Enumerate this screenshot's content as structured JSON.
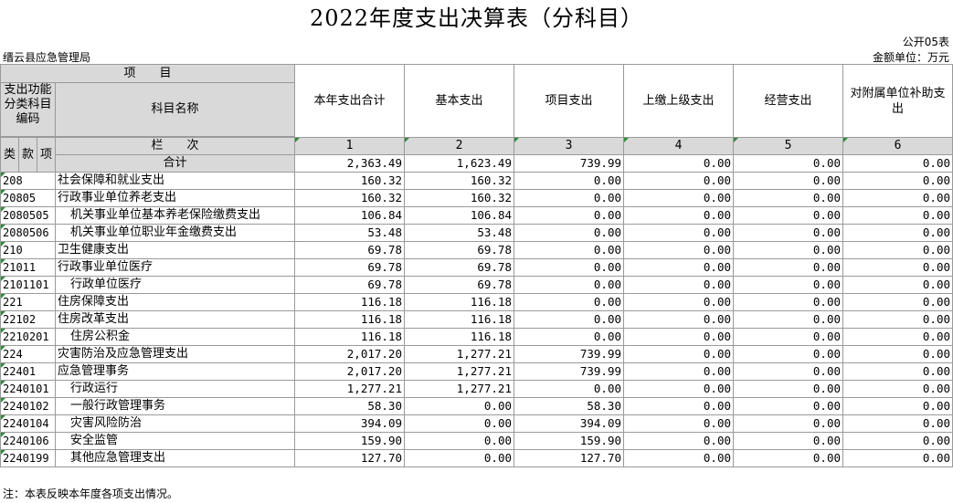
{
  "title": "2022年度支出决算表（分科目）",
  "form_code": "公开05表",
  "org_name": "缙云县应急管理局",
  "unit_label": "金额单位：万元",
  "header": {
    "item": "项　　目",
    "func_code": "支出功能分类科目编码",
    "name": "科目名称",
    "lei": "类",
    "kuan": "款",
    "xiang": "项",
    "lanci": "栏　　次",
    "columns": [
      "本年支出合计",
      "基本支出",
      "项目支出",
      "上缴上级支出",
      "经营支出",
      "对附属单位补助支出"
    ],
    "column_numbers": [
      "1",
      "2",
      "3",
      "4",
      "5",
      "6"
    ]
  },
  "total": {
    "label": "合计",
    "values": [
      "2,363.49",
      "1,623.49",
      "739.99",
      "0.00",
      "0.00",
      "0.00"
    ]
  },
  "rows": [
    {
      "code": "208",
      "name": "社会保障和就业支出",
      "values": [
        "160.32",
        "160.32",
        "0.00",
        "0.00",
        "0.00",
        "0.00"
      ]
    },
    {
      "code": "20805",
      "name": "行政事业单位养老支出",
      "values": [
        "160.32",
        "160.32",
        "0.00",
        "0.00",
        "0.00",
        "0.00"
      ]
    },
    {
      "code": "2080505",
      "name": "机关事业单位基本养老保险缴费支出",
      "values": [
        "106.84",
        "106.84",
        "0.00",
        "0.00",
        "0.00",
        "0.00"
      ]
    },
    {
      "code": "2080506",
      "name": "机关事业单位职业年金缴费支出",
      "values": [
        "53.48",
        "53.48",
        "0.00",
        "0.00",
        "0.00",
        "0.00"
      ]
    },
    {
      "code": "210",
      "name": "卫生健康支出",
      "values": [
        "69.78",
        "69.78",
        "0.00",
        "0.00",
        "0.00",
        "0.00"
      ]
    },
    {
      "code": "21011",
      "name": "行政事业单位医疗",
      "values": [
        "69.78",
        "69.78",
        "0.00",
        "0.00",
        "0.00",
        "0.00"
      ]
    },
    {
      "code": "2101101",
      "name": "行政单位医疗",
      "values": [
        "69.78",
        "69.78",
        "0.00",
        "0.00",
        "0.00",
        "0.00"
      ]
    },
    {
      "code": "221",
      "name": "住房保障支出",
      "values": [
        "116.18",
        "116.18",
        "0.00",
        "0.00",
        "0.00",
        "0.00"
      ]
    },
    {
      "code": "22102",
      "name": "住房改革支出",
      "values": [
        "116.18",
        "116.18",
        "0.00",
        "0.00",
        "0.00",
        "0.00"
      ]
    },
    {
      "code": "2210201",
      "name": "住房公积金",
      "values": [
        "116.18",
        "116.18",
        "0.00",
        "0.00",
        "0.00",
        "0.00"
      ]
    },
    {
      "code": "224",
      "name": "灾害防治及应急管理支出",
      "values": [
        "2,017.20",
        "1,277.21",
        "739.99",
        "0.00",
        "0.00",
        "0.00"
      ]
    },
    {
      "code": "22401",
      "name": "应急管理事务",
      "values": [
        "2,017.20",
        "1,277.21",
        "739.99",
        "0.00",
        "0.00",
        "0.00"
      ]
    },
    {
      "code": "2240101",
      "name": "行政运行",
      "values": [
        "1,277.21",
        "1,277.21",
        "0.00",
        "0.00",
        "0.00",
        "0.00"
      ]
    },
    {
      "code": "2240102",
      "name": "一般行政管理事务",
      "values": [
        "58.30",
        "0.00",
        "58.30",
        "0.00",
        "0.00",
        "0.00"
      ]
    },
    {
      "code": "2240104",
      "name": "灾害风险防治",
      "values": [
        "394.09",
        "0.00",
        "394.09",
        "0.00",
        "0.00",
        "0.00"
      ]
    },
    {
      "code": "2240106",
      "name": "安全监管",
      "values": [
        "159.90",
        "0.00",
        "159.90",
        "0.00",
        "0.00",
        "0.00"
      ]
    },
    {
      "code": "2240199",
      "name": "其他应急管理支出",
      "values": [
        "127.70",
        "0.00",
        "127.70",
        "0.00",
        "0.00",
        "0.00"
      ]
    }
  ],
  "note": "注：本表反映本年度各项支出情况。"
}
